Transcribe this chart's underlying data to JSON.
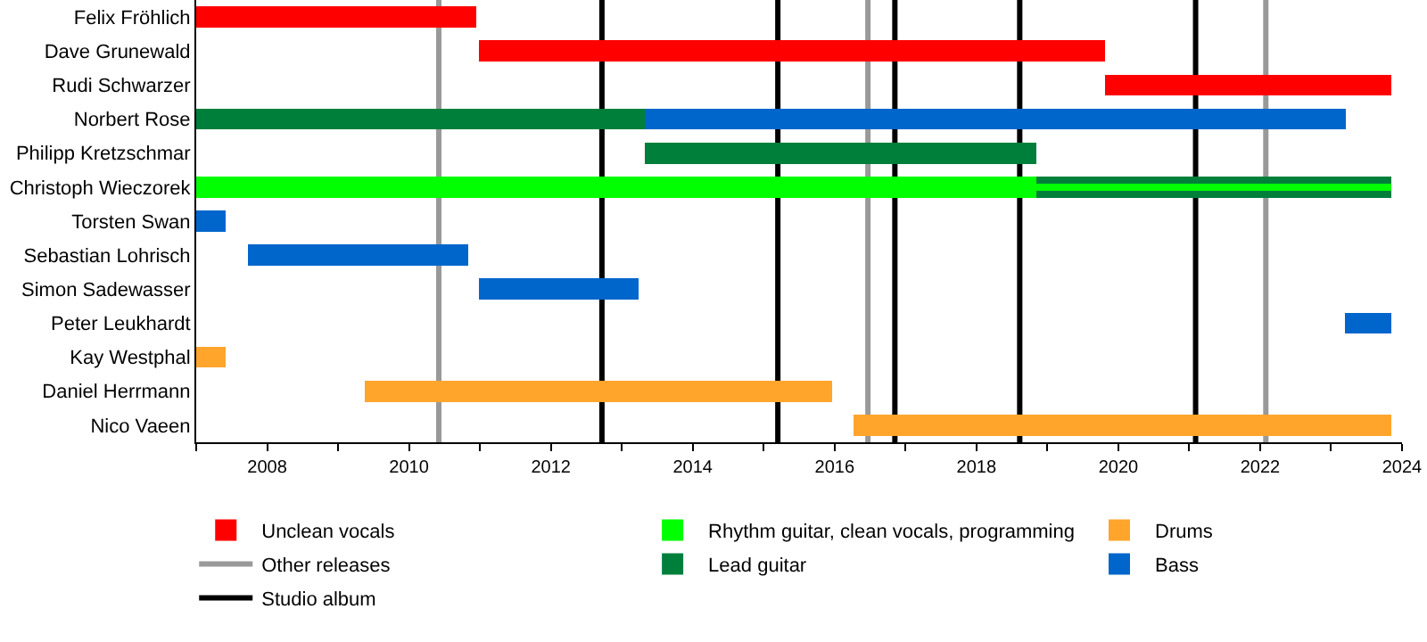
{
  "chart_data": {
    "type": "bar",
    "orientation": "horizontal",
    "legend": "bottom",
    "categories": [
      "Felix Fröhlich",
      "Dave Grunewald",
      "Rudi Schwarzer",
      "Norbert Rose",
      "Philipp Kretzschmar",
      "Christoph Wieczorek",
      "Torsten Swan",
      "Sebastian Lohrisch",
      "Simon Sadewasser",
      "Peter Leukhardt",
      "Kay Westphal",
      "Daniel Herrmann",
      "Nico Vaeen"
    ],
    "series": [
      {
        "name": "Unclean vocals",
        "color": "#ff0000",
        "base": [
          2007,
          2010.98,
          2019.81,
          null,
          null,
          null,
          null,
          null,
          null,
          null,
          null,
          null,
          null
        ],
        "values": [
          3.95,
          8.83,
          4.04,
          null,
          null,
          null,
          null,
          null,
          null,
          null,
          null,
          null,
          null
        ]
      },
      {
        "name": "Lead guitar",
        "color": "#007f3b",
        "base": [
          null,
          null,
          null,
          2007,
          2013.32,
          2018.85,
          null,
          null,
          null,
          null,
          null,
          null,
          null
        ],
        "values": [
          null,
          null,
          null,
          6.32,
          5.53,
          5.0,
          null,
          null,
          null,
          null,
          null,
          null,
          null
        ]
      },
      {
        "name": "Rhythm guitar, clean vocals, programming",
        "color": "#00ff00",
        "base": [
          null,
          null,
          null,
          null,
          null,
          2007,
          null,
          null,
          null,
          null,
          null,
          null,
          null
        ],
        "values": [
          null,
          null,
          null,
          null,
          null,
          11.85,
          null,
          null,
          null,
          null,
          null,
          null,
          null
        ]
      },
      {
        "color": "#00ff00",
        "base": [
          null,
          null,
          null,
          null,
          null,
          2018.85,
          null,
          null,
          null,
          null,
          null,
          null,
          null
        ],
        "values": [
          null,
          null,
          null,
          null,
          null,
          5.0,
          null,
          null,
          null,
          null,
          null,
          null,
          null
        ]
      },
      {
        "name": "Bass",
        "color": "#0066cc",
        "base": [
          null,
          null,
          null,
          2013.32,
          null,
          null,
          2007,
          2007.73,
          2010.98,
          2023.2,
          null,
          null,
          null
        ],
        "values": [
          null,
          null,
          null,
          9.89,
          null,
          null,
          0.41,
          3.1,
          2.26,
          0.65,
          null,
          null,
          null
        ]
      },
      {
        "name": "Drums",
        "color": "#ffa52c",
        "base": [
          null,
          null,
          null,
          null,
          null,
          null,
          null,
          null,
          null,
          null,
          2007,
          2009.38,
          2016.27
        ],
        "values": [
          null,
          null,
          null,
          null,
          null,
          null,
          null,
          null,
          null,
          null,
          0.41,
          6.59,
          7.58
        ]
      }
    ],
    "xlim": [
      2007,
      2024
    ],
    "xticks": [
      {
        "value": 2007,
        "label": null
      },
      2008,
      {
        "value": 2009,
        "label": null
      },
      2010,
      {
        "value": 2011,
        "label": null
      },
      2012,
      {
        "value": 2013,
        "label": null
      },
      2014,
      {
        "value": 2015,
        "label": null
      },
      2016,
      {
        "value": 2017,
        "label": null
      },
      2018,
      {
        "value": 2019,
        "label": null
      },
      2020,
      {
        "value": 2021,
        "label": null
      },
      2022,
      {
        "value": 2023,
        "label": null
      },
      2024
    ],
    "ref_lines": [
      {
        "axis": "x",
        "value": 2012.72,
        "label": "Studio album",
        "color": "#000000"
      },
      {
        "axis": "x",
        "value": 2015.2,
        "color": "#000000"
      },
      {
        "axis": "x",
        "value": 2016.85,
        "color": "#000000"
      },
      {
        "axis": "x",
        "value": 2018.61,
        "color": "#000000"
      },
      {
        "axis": "x",
        "value": 2021.09,
        "color": "#000000"
      },
      {
        "axis": "x",
        "value": 2010.42,
        "label": "Other releases",
        "color": "#999999"
      },
      {
        "axis": "x",
        "value": 2016.47,
        "color": "#999999"
      },
      {
        "axis": "x",
        "value": 2022.08,
        "color": "#999999"
      }
    ]
  }
}
